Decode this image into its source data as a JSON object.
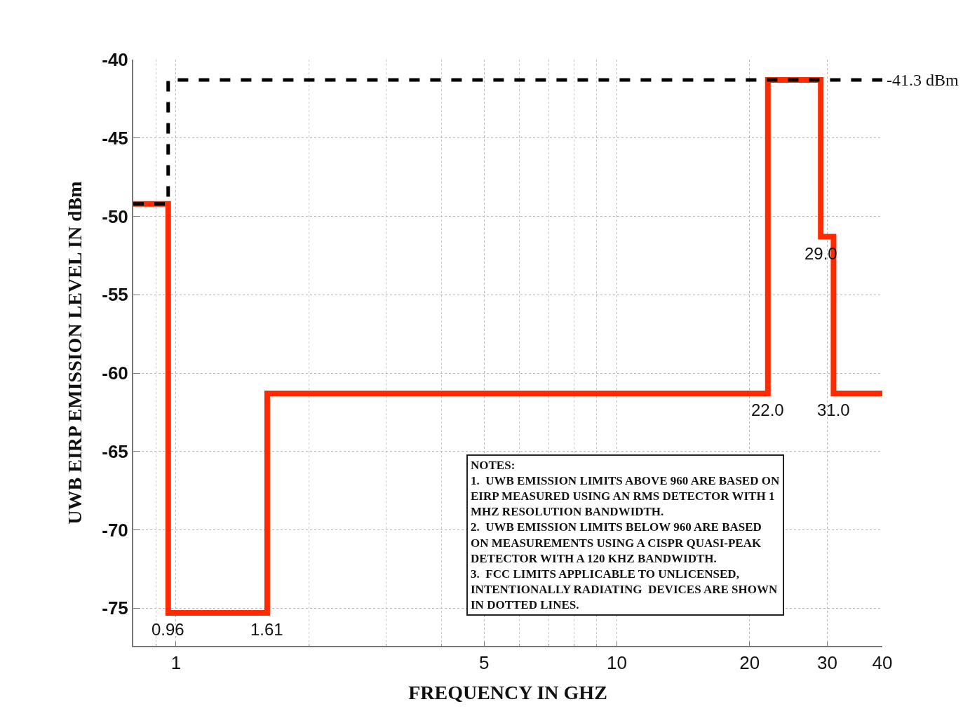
{
  "chart_data": {
    "type": "step",
    "xlabel": "FREQUENCY IN GHZ",
    "ylabel": "UWB EIRP EMISSION LEVEL IN dBm",
    "log": "x",
    "xlim": [
      0.8,
      40
    ],
    "xticks": [
      1,
      5,
      10,
      20,
      30,
      40
    ],
    "ylim": [
      -77.4,
      -40
    ],
    "yticks": [
      -40,
      -45,
      -50,
      -55,
      -60,
      -65,
      -70,
      -75
    ],
    "grid": true,
    "marker": "none",
    "series": [
      {
        "color": "#ff2a00",
        "line_style": "solid",
        "x": [
          0.8,
          0.96,
          1.61,
          22,
          29,
          31,
          40
        ],
        "values": [
          -49.2,
          -75.3,
          -61.3,
          -41.3,
          -51.3,
          -61.3,
          -61.3
        ]
      },
      {
        "color": "#000000",
        "line_style": "dashed",
        "x": [
          0.8,
          0.96,
          40
        ],
        "values": [
          -49.2,
          -41.3,
          -41.3
        ]
      }
    ],
    "annotations": [
      {
        "text": "0.96",
        "x": 0.96,
        "y": -75.3
      },
      {
        "text": "1.61",
        "x": 1.61,
        "y": -75.3
      },
      {
        "text": "22.0",
        "x": 22,
        "y": -61.3
      },
      {
        "text": "29.0",
        "x": 29,
        "y": -51.3
      },
      {
        "text": "31.0",
        "x": 31,
        "y": -61.3
      },
      {
        "text": "-41.3 dBm",
        "x": 40,
        "y": -41.3
      },
      "NOTES:\n1.  UWB EMISSION LIMITS ABOVE 960 ARE BASED ON\nEIRP MEASURED USING AN RMS DETECTOR WITH 1\nMHZ RESOLUTION BANDWIDTH.\n2.  UWB EMISSION LIMITS BELOW 960 ARE BASED\nON MEASUREMENTS USING A CISPR QUASI-PEAK\nDETECTOR WITH A 120 KHZ BANDWIDTH.\n3.  FCC LIMITS APPLICABLE TO UNLICENSED,\nINTENTIONALLY RADIATING  DEVICES ARE SHOWN\nIN DOTTED LINES."
    ]
  }
}
